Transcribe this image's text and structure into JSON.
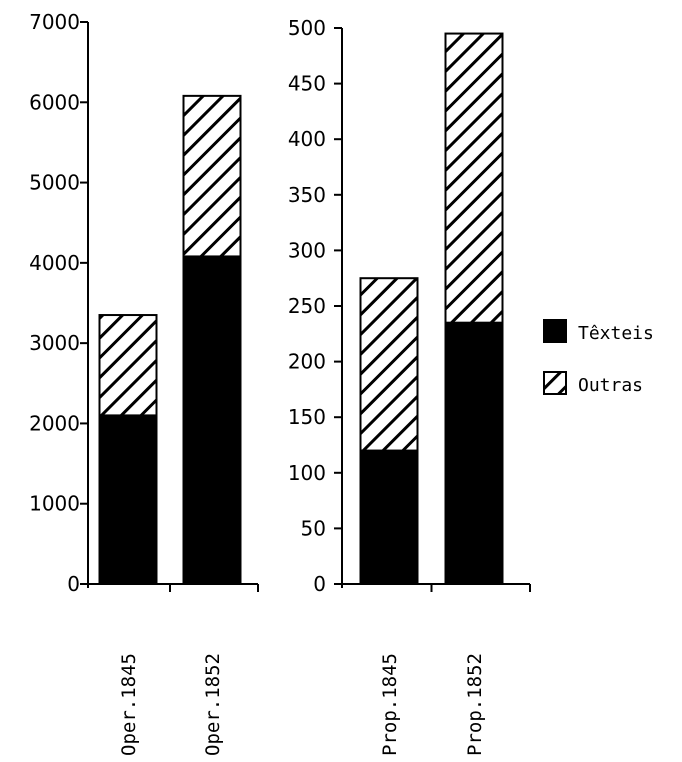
{
  "chart_data": [
    {
      "type": "bar",
      "stacked": true,
      "categories": [
        "Oper.1845",
        "Oper.1852"
      ],
      "series": [
        {
          "name": "Têxteis",
          "values": [
            2100,
            4080
          ]
        },
        {
          "name": "Outras",
          "values": [
            1250,
            2000
          ]
        }
      ],
      "ylim": [
        0,
        7000
      ],
      "yticks": [
        0,
        1000,
        2000,
        3000,
        4000,
        5000,
        6000,
        7000
      ],
      "grid": false
    },
    {
      "type": "bar",
      "stacked": true,
      "categories": [
        "Prop.1845",
        "Prop.1852"
      ],
      "series": [
        {
          "name": "Têxteis",
          "values": [
            120,
            235
          ]
        },
        {
          "name": "Outras",
          "values": [
            155,
            260
          ]
        }
      ],
      "ylim": [
        0,
        500
      ],
      "yticks": [
        0,
        50,
        100,
        150,
        200,
        250,
        300,
        350,
        400,
        450,
        500
      ],
      "grid": false
    }
  ],
  "legend": {
    "position": "right",
    "items": [
      {
        "label": "Têxteis",
        "style": "solid",
        "color": "#000000"
      },
      {
        "label": "Outras",
        "style": "hatched",
        "color": "#000000"
      }
    ]
  }
}
